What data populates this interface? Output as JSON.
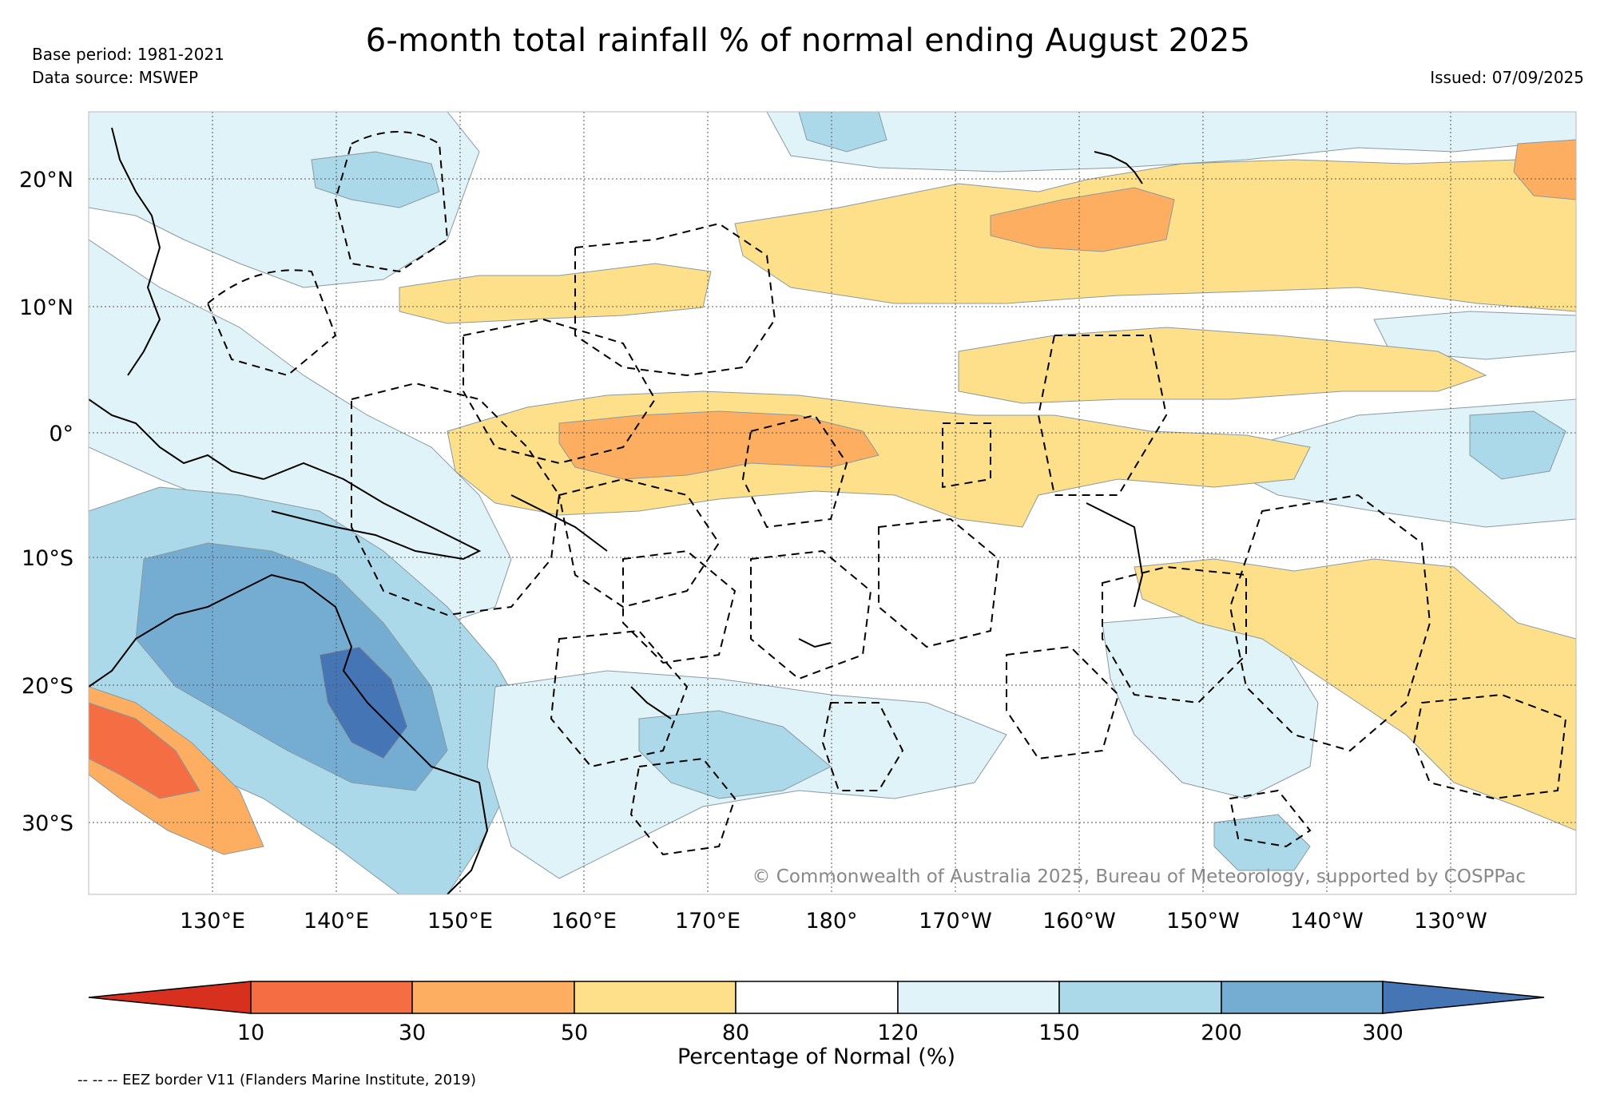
{
  "title": "6-month total rainfall % of normal ending August 2025",
  "meta": {
    "base_period": "Base period: 1981-2021",
    "data_source": "Data source: MSWEP",
    "issued": "Issued: 07/09/2025"
  },
  "map": {
    "lat_ticks": [
      "20°N",
      "10°N",
      "0°",
      "10°S",
      "20°S",
      "30°S"
    ],
    "lon_ticks": [
      "130°E",
      "140°E",
      "150°E",
      "160°E",
      "170°E",
      "180°",
      "170°W",
      "160°W",
      "150°W",
      "140°W",
      "130°W"
    ],
    "lat_values": [
      20,
      10,
      0,
      -10,
      -20,
      -30
    ],
    "lon_values": [
      130,
      140,
      150,
      160,
      170,
      180,
      -170,
      -160,
      -150,
      -140,
      -130
    ],
    "copyright": "© Commonwealth of Australia 2025, Bureau of Meteorology, supported by COSPPac"
  },
  "colorbar": {
    "label": "Percentage of Normal (%)",
    "ticks": [
      "10",
      "30",
      "50",
      "80",
      "120",
      "150",
      "200",
      "300"
    ],
    "colors": [
      "#d7301f",
      "#f46d43",
      "#fdae61",
      "#fee08b",
      "#ffffff",
      "#e0f3f8",
      "#abd9e9",
      "#74add1",
      "#4575b4"
    ]
  },
  "legend": {
    "eez": "-- -- -- EEZ border V11 (Flanders Marine Institute, 2019)"
  },
  "colors": {
    "dry_strong": "#f46d43",
    "dry_mid": "#fdae61",
    "dry_light": "#fee08b",
    "wet_light": "#e0f3f8",
    "wet_mid": "#abd9e9",
    "wet_strong": "#74add1",
    "wet_extreme": "#4575b4"
  }
}
